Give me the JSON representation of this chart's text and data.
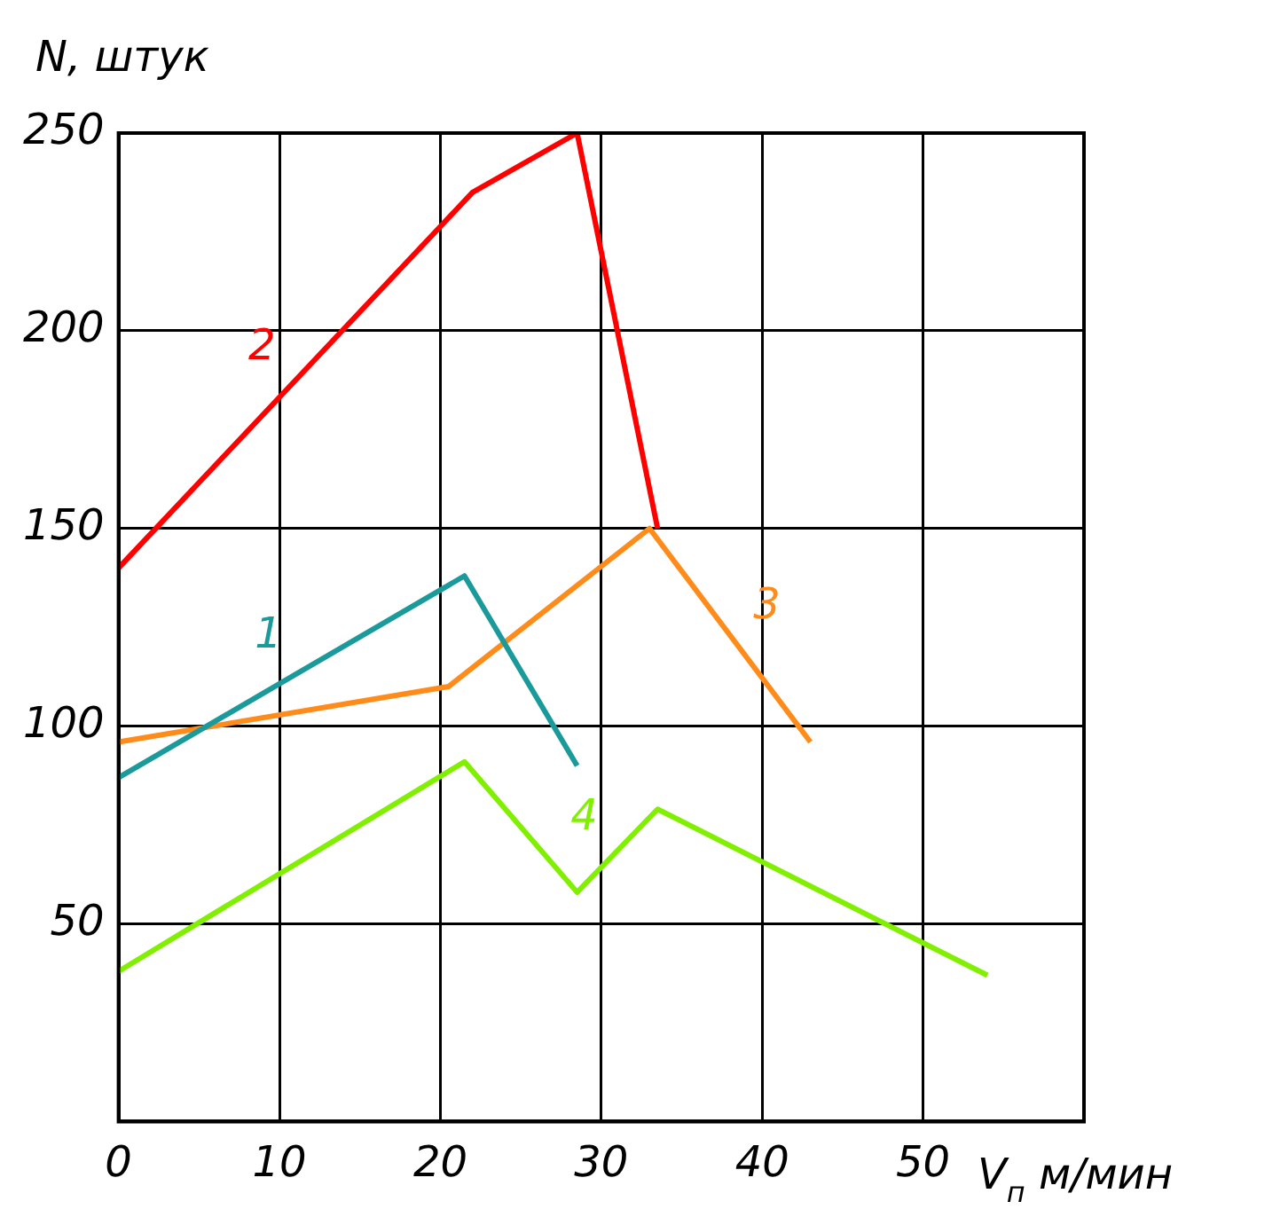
{
  "chart_data": {
    "type": "line",
    "ylabel": "N, штук",
    "xlabel": "V$_{п}$ м/мин",
    "xlim": [
      0,
      60
    ],
    "xticks": [
      0,
      10,
      20,
      30,
      40,
      50
    ],
    "ylim": [
      0,
      250
    ],
    "yticks": [
      50,
      100,
      150,
      200,
      250
    ],
    "grid": true,
    "legend": false,
    "marker": "none",
    "line_style": "solid",
    "series": [
      {
        "name": "1",
        "color": "#1a9a9a",
        "x": [
          0,
          21.5,
          28.5
        ],
        "values": [
          87,
          138,
          90
        ]
      },
      {
        "name": "2",
        "color": "#ff0000",
        "x": [
          0,
          22,
          28.5,
          33.5
        ],
        "values": [
          140,
          235,
          250,
          150
        ]
      },
      {
        "name": "3",
        "color": "#ff8c1a",
        "x": [
          0,
          20.5,
          33,
          43
        ],
        "values": [
          96,
          110,
          150,
          96
        ]
      },
      {
        "name": "4",
        "color": "#80f000",
        "x": [
          0,
          21.5,
          28.5,
          33.5,
          54
        ],
        "values": [
          38,
          91,
          58,
          79,
          37
        ]
      }
    ]
  }
}
